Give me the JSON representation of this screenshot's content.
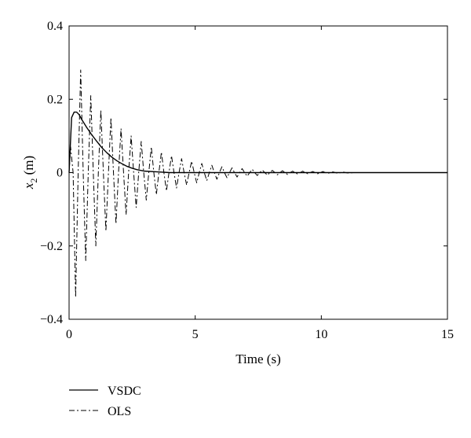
{
  "chart_data": {
    "type": "line",
    "title": "",
    "xlabel": "Time (s)",
    "ylabel": {
      "var": "x",
      "sub": "2",
      "unit": " (m)"
    },
    "xlim": [
      0,
      15
    ],
    "ylim": [
      -0.4,
      0.4
    ],
    "xticks": [
      "0",
      "5",
      "10",
      "15"
    ],
    "yticks": [
      "0.4",
      "0.2",
      "0",
      "−0.2",
      "−0.4"
    ],
    "grid": false,
    "legend_position": "below-left",
    "series": [
      {
        "name": "VSDC",
        "style": "solid",
        "x": [
          0,
          0.1,
          0.2,
          0.3,
          0.4,
          0.5,
          0.7,
          0.9,
          1.1,
          1.3,
          1.5,
          1.7,
          1.9,
          2.1,
          2.3,
          2.5,
          2.7,
          3.0,
          3.5,
          4.0,
          5.0,
          7.0,
          10.0,
          15.0
        ],
        "values": [
          0.0,
          0.15,
          0.165,
          0.165,
          0.158,
          0.145,
          0.123,
          0.103,
          0.085,
          0.068,
          0.054,
          0.042,
          0.032,
          0.024,
          0.017,
          0.012,
          0.008,
          0.004,
          0.002,
          0.0,
          0.0,
          0.0,
          0.0,
          0.0
        ]
      },
      {
        "name": "OLS",
        "style": "dash-dot",
        "x": [
          0,
          0.06,
          0.16,
          0.26,
          0.36,
          0.46,
          0.56,
          0.66,
          0.76,
          0.86,
          0.96,
          1.06,
          1.16,
          1.26,
          1.36,
          1.46,
          1.56,
          1.66,
          1.76,
          1.86,
          1.96,
          2.06,
          2.16,
          2.26,
          2.36,
          2.46,
          2.56,
          2.66,
          2.76,
          2.86,
          2.96,
          3.06,
          3.16,
          3.26,
          3.36,
          3.46,
          3.56,
          3.66,
          3.76,
          3.86,
          3.96,
          4.06,
          4.16,
          4.26,
          4.36,
          4.46,
          4.56,
          4.66,
          4.76,
          4.86,
          4.96,
          5.06,
          5.16,
          5.26,
          5.36,
          5.46,
          5.56,
          5.66,
          5.76,
          5.86,
          5.96,
          6.06,
          6.16,
          6.26,
          6.36,
          6.46,
          6.56,
          6.66,
          6.76,
          6.86,
          6.96,
          7.06,
          7.16,
          7.26,
          7.36,
          7.46,
          7.56,
          7.66,
          7.76,
          7.86,
          7.96,
          8.06,
          8.16,
          8.26,
          8.36,
          8.46,
          8.56,
          8.66,
          8.76,
          8.86,
          8.96,
          9.06,
          9.16,
          9.26,
          9.36,
          9.46,
          9.56,
          9.66,
          9.76,
          9.86,
          9.96,
          10.06,
          10.16,
          10.26,
          10.36,
          10.46,
          10.56,
          10.66,
          10.76,
          10.86,
          10.96,
          11.06,
          11.3,
          12.0,
          15.0
        ],
        "values": [
          0.0,
          0.07,
          0.0,
          -0.34,
          0.0,
          0.28,
          0.0,
          -0.24,
          0.0,
          0.21,
          0.0,
          -0.2,
          0.0,
          0.17,
          0.0,
          -0.16,
          0.0,
          0.15,
          0.0,
          -0.14,
          0.0,
          0.12,
          0.0,
          -0.115,
          0.0,
          0.1,
          0.0,
          -0.095,
          0.0,
          0.085,
          0.0,
          -0.075,
          0.0,
          0.07,
          0.0,
          -0.06,
          0.0,
          0.056,
          0.0,
          -0.05,
          0.0,
          0.046,
          0.0,
          -0.042,
          0.0,
          0.038,
          0.0,
          -0.034,
          0.0,
          0.031,
          0.0,
          -0.028,
          0.0,
          0.025,
          0.0,
          -0.022,
          0.0,
          0.02,
          0.0,
          -0.018,
          0.0,
          0.016,
          0.0,
          -0.014,
          0.0,
          0.013,
          0.0,
          -0.012,
          0.0,
          0.011,
          0.0,
          -0.01,
          0.0,
          0.009,
          0.0,
          -0.008,
          0.0,
          0.007,
          0.0,
          -0.007,
          0.0,
          0.006,
          0.0,
          -0.006,
          0.0,
          0.005,
          0.0,
          -0.005,
          0.0,
          0.004,
          0.0,
          -0.004,
          0.0,
          0.004,
          0.0,
          -0.003,
          0.0,
          0.003,
          0.0,
          -0.003,
          0.0,
          0.003,
          0.0,
          -0.002,
          0.0,
          0.002,
          0.0,
          -0.002,
          0.0,
          0.002,
          0.0,
          -0.001,
          0.0,
          0.0,
          0.0
        ]
      }
    ]
  }
}
